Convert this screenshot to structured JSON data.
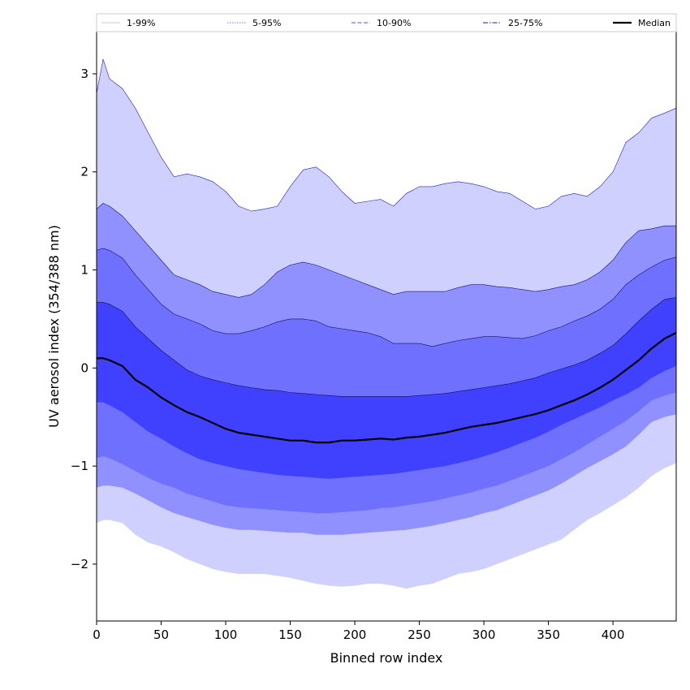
{
  "chart_data": {
    "type": "area",
    "xlabel": "Binned row index",
    "ylabel": "UV aerosol index (354/388 nm)",
    "xlim": [
      0,
      449
    ],
    "ylim": [
      -2.58,
      3.43
    ],
    "xticks": [
      0,
      50,
      100,
      150,
      200,
      250,
      300,
      350,
      400
    ],
    "yticks": [
      -2,
      -1,
      0,
      1,
      2,
      3
    ],
    "grid": false,
    "legend_position": "top (above plot, single row)",
    "legend": [
      {
        "label": "1-99%",
        "color": "#d0d0ff",
        "style": "solid"
      },
      {
        "label": "5-95%",
        "color": "#9090ff",
        "style": "dotted"
      },
      {
        "label": "10-90%",
        "color": "#7070ff",
        "style": "dashed"
      },
      {
        "label": "25-75%",
        "color": "#4040ff",
        "style": "dashdot"
      },
      {
        "label": "Median",
        "color": "#000000",
        "style": "solid"
      }
    ],
    "x": [
      0,
      5,
      10,
      20,
      30,
      40,
      50,
      60,
      70,
      80,
      90,
      100,
      110,
      120,
      130,
      140,
      150,
      160,
      170,
      180,
      190,
      200,
      210,
      220,
      230,
      240,
      250,
      260,
      270,
      280,
      290,
      300,
      310,
      320,
      330,
      340,
      350,
      360,
      370,
      380,
      390,
      400,
      410,
      420,
      430,
      440,
      449
    ],
    "series": [
      {
        "name": "1-99%",
        "color": "#d0d0ff",
        "upper": [
          2.8,
          3.15,
          2.95,
          2.85,
          2.65,
          2.4,
          2.15,
          1.95,
          1.98,
          1.95,
          1.9,
          1.8,
          1.65,
          1.6,
          1.62,
          1.65,
          1.85,
          2.02,
          2.05,
          1.95,
          1.8,
          1.68,
          1.7,
          1.72,
          1.65,
          1.78,
          1.85,
          1.85,
          1.88,
          1.9,
          1.88,
          1.85,
          1.8,
          1.78,
          1.7,
          1.62,
          1.65,
          1.75,
          1.78,
          1.75,
          1.85,
          2.0,
          2.3,
          2.4,
          2.55,
          2.6,
          2.65
        ],
        "lower": [
          -1.58,
          -1.55,
          -1.55,
          -1.58,
          -1.7,
          -1.78,
          -1.82,
          -1.88,
          -1.95,
          -2.0,
          -2.05,
          -2.08,
          -2.1,
          -2.1,
          -2.1,
          -2.12,
          -2.14,
          -2.17,
          -2.2,
          -2.22,
          -2.23,
          -2.22,
          -2.2,
          -2.2,
          -2.22,
          -2.25,
          -2.22,
          -2.2,
          -2.15,
          -2.1,
          -2.08,
          -2.05,
          -2.0,
          -1.95,
          -1.9,
          -1.85,
          -1.8,
          -1.75,
          -1.65,
          -1.55,
          -1.48,
          -1.4,
          -1.32,
          -1.22,
          -1.1,
          -1.02,
          -0.97
        ]
      },
      {
        "name": "5-95%",
        "color": "#9090ff",
        "upper": [
          1.62,
          1.68,
          1.65,
          1.55,
          1.4,
          1.25,
          1.1,
          0.95,
          0.9,
          0.85,
          0.78,
          0.75,
          0.72,
          0.75,
          0.85,
          0.98,
          1.05,
          1.08,
          1.05,
          1.0,
          0.95,
          0.9,
          0.85,
          0.8,
          0.75,
          0.78,
          0.78,
          0.78,
          0.78,
          0.82,
          0.85,
          0.85,
          0.83,
          0.82,
          0.8,
          0.78,
          0.8,
          0.83,
          0.85,
          0.9,
          0.98,
          1.1,
          1.28,
          1.4,
          1.42,
          1.45,
          1.45
        ],
        "lower": [
          -1.22,
          -1.2,
          -1.2,
          -1.22,
          -1.28,
          -1.35,
          -1.42,
          -1.48,
          -1.52,
          -1.56,
          -1.6,
          -1.63,
          -1.65,
          -1.65,
          -1.66,
          -1.67,
          -1.68,
          -1.68,
          -1.7,
          -1.7,
          -1.7,
          -1.69,
          -1.68,
          -1.67,
          -1.66,
          -1.65,
          -1.63,
          -1.61,
          -1.58,
          -1.55,
          -1.52,
          -1.48,
          -1.45,
          -1.4,
          -1.35,
          -1.3,
          -1.25,
          -1.18,
          -1.1,
          -1.02,
          -0.95,
          -0.88,
          -0.8,
          -0.68,
          -0.55,
          -0.5,
          -0.47
        ]
      },
      {
        "name": "10-90%",
        "color": "#7070ff",
        "upper": [
          1.2,
          1.22,
          1.2,
          1.12,
          0.95,
          0.8,
          0.65,
          0.55,
          0.5,
          0.45,
          0.38,
          0.35,
          0.35,
          0.38,
          0.42,
          0.47,
          0.5,
          0.5,
          0.48,
          0.42,
          0.4,
          0.38,
          0.36,
          0.32,
          0.25,
          0.25,
          0.25,
          0.22,
          0.25,
          0.28,
          0.3,
          0.32,
          0.32,
          0.31,
          0.3,
          0.33,
          0.38,
          0.42,
          0.48,
          0.53,
          0.6,
          0.7,
          0.85,
          0.95,
          1.03,
          1.1,
          1.13
        ],
        "lower": [
          -0.92,
          -0.9,
          -0.92,
          -0.98,
          -1.05,
          -1.12,
          -1.18,
          -1.22,
          -1.28,
          -1.32,
          -1.36,
          -1.4,
          -1.42,
          -1.43,
          -1.44,
          -1.45,
          -1.46,
          -1.47,
          -1.48,
          -1.48,
          -1.47,
          -1.46,
          -1.45,
          -1.43,
          -1.42,
          -1.4,
          -1.38,
          -1.36,
          -1.33,
          -1.3,
          -1.27,
          -1.23,
          -1.2,
          -1.15,
          -1.1,
          -1.05,
          -1.0,
          -0.93,
          -0.86,
          -0.78,
          -0.7,
          -0.62,
          -0.54,
          -0.44,
          -0.33,
          -0.28,
          -0.25
        ]
      },
      {
        "name": "25-75%",
        "color": "#4040ff",
        "upper": [
          0.67,
          0.67,
          0.65,
          0.58,
          0.42,
          0.3,
          0.18,
          0.08,
          -0.02,
          -0.08,
          -0.12,
          -0.15,
          -0.18,
          -0.2,
          -0.22,
          -0.23,
          -0.25,
          -0.26,
          -0.27,
          -0.28,
          -0.29,
          -0.29,
          -0.29,
          -0.29,
          -0.29,
          -0.29,
          -0.28,
          -0.27,
          -0.26,
          -0.24,
          -0.22,
          -0.2,
          -0.18,
          -0.16,
          -0.13,
          -0.1,
          -0.05,
          -0.01,
          0.03,
          0.08,
          0.15,
          0.23,
          0.35,
          0.48,
          0.6,
          0.7,
          0.72
        ],
        "lower": [
          -0.35,
          -0.35,
          -0.38,
          -0.45,
          -0.55,
          -0.65,
          -0.72,
          -0.8,
          -0.87,
          -0.93,
          -0.97,
          -1.0,
          -1.03,
          -1.05,
          -1.07,
          -1.09,
          -1.1,
          -1.11,
          -1.12,
          -1.13,
          -1.12,
          -1.11,
          -1.1,
          -1.09,
          -1.08,
          -1.06,
          -1.04,
          -1.02,
          -1.0,
          -0.97,
          -0.94,
          -0.9,
          -0.86,
          -0.81,
          -0.76,
          -0.71,
          -0.65,
          -0.58,
          -0.52,
          -0.46,
          -0.4,
          -0.33,
          -0.27,
          -0.2,
          -0.1,
          -0.03,
          0.02
        ]
      },
      {
        "name": "Median",
        "color": "#000000",
        "values": [
          0.1,
          0.1,
          0.08,
          0.02,
          -0.12,
          -0.2,
          -0.3,
          -0.38,
          -0.45,
          -0.5,
          -0.56,
          -0.62,
          -0.66,
          -0.68,
          -0.7,
          -0.72,
          -0.74,
          -0.74,
          -0.76,
          -0.76,
          -0.74,
          -0.74,
          -0.73,
          -0.72,
          -0.73,
          -0.71,
          -0.7,
          -0.68,
          -0.66,
          -0.63,
          -0.6,
          -0.58,
          -0.56,
          -0.53,
          -0.5,
          -0.47,
          -0.43,
          -0.38,
          -0.33,
          -0.27,
          -0.2,
          -0.12,
          -0.02,
          0.08,
          0.2,
          0.3,
          0.36
        ]
      }
    ]
  }
}
